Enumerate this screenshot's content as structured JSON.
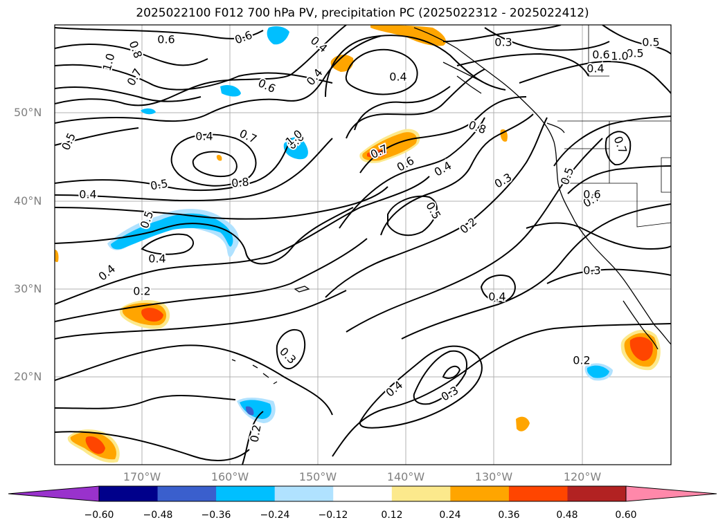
{
  "title": "2025022100 F012 700 hPa PV, precipitation PC (2025022312 - 2025022412)",
  "map": {
    "lat_labels": [
      "50°N",
      "40°N",
      "30°N",
      "20°N"
    ],
    "lon_labels": [
      "170°W",
      "160°W",
      "150°W",
      "140°W",
      "130°W",
      "120°W"
    ],
    "contour_labels": [
      "0.6",
      "0.6",
      "1.0",
      "0.8",
      "0.3",
      "0.4",
      "0.7",
      "0.6",
      "0.5",
      "1.0",
      "0.7",
      "0.7",
      "0.8",
      "0.4",
      "0.4",
      "0.6",
      "0.5",
      "0.4",
      "0.4",
      "1.0",
      "0.8",
      "0.6",
      "0.5",
      "0.7",
      "0.4",
      "0.6",
      "0.5",
      "0.4",
      "0.5",
      "0.3",
      "0.4",
      "0.7",
      "0.5",
      "0.6",
      "0.3",
      "0.2",
      "0.4",
      "0.3",
      "0.2",
      "0.4",
      "0.3",
      "0.2",
      "0.4",
      "0.5",
      "0.2"
    ]
  },
  "colorbar": {
    "labels": [
      "−0.60",
      "−0.48",
      "−0.36",
      "−0.24",
      "−0.12",
      "0.12",
      "0.24",
      "0.36",
      "0.48",
      "0.60"
    ],
    "colors": [
      "#9932cc",
      "#00008b",
      "#3a5fcd",
      "#00bfff",
      "#b0e2ff",
      "#ffffff",
      "#fce98c",
      "#ffa500",
      "#ff4500",
      "#b22222",
      "#ff88aa"
    ]
  }
}
